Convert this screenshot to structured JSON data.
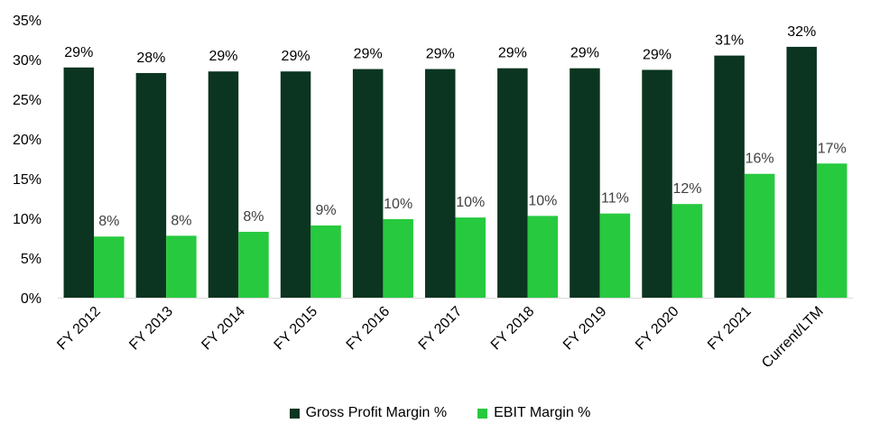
{
  "chart_data": {
    "type": "bar",
    "title": "",
    "xlabel": "",
    "ylabel": "",
    "ylim": [
      0,
      35
    ],
    "y_ticks": [
      "0%",
      "5%",
      "10%",
      "15%",
      "20%",
      "25%",
      "30%",
      "35%"
    ],
    "y_tick_values": [
      0,
      5,
      10,
      15,
      20,
      25,
      30,
      35
    ],
    "grid": false,
    "legend_position": "bottom",
    "categories": [
      "FY 2012",
      "FY 2013",
      "FY 2014",
      "FY 2015",
      "FY 2016",
      "FY 2017",
      "FY 2018",
      "FY 2019",
      "FY 2020",
      "FY 2021",
      "Current/LTM"
    ],
    "series": [
      {
        "name": "Gross Profit Margin %",
        "color": "#0b3520",
        "label_color": "#000000",
        "values": [
          29.0,
          28.3,
          28.5,
          28.5,
          28.8,
          28.8,
          28.9,
          28.9,
          28.7,
          30.5,
          31.6
        ],
        "labels": [
          "29%",
          "28%",
          "29%",
          "29%",
          "29%",
          "29%",
          "29%",
          "29%",
          "29%",
          "31%",
          "32%"
        ]
      },
      {
        "name": "EBIT Margin %",
        "color": "#27c93f",
        "label_color": "#404040",
        "values": [
          7.7,
          7.8,
          8.3,
          9.1,
          9.9,
          10.1,
          10.3,
          10.6,
          11.8,
          15.6,
          16.9
        ],
        "labels": [
          "8%",
          "8%",
          "8%",
          "9%",
          "10%",
          "10%",
          "10%",
          "11%",
          "12%",
          "16%",
          "17%"
        ]
      }
    ]
  }
}
